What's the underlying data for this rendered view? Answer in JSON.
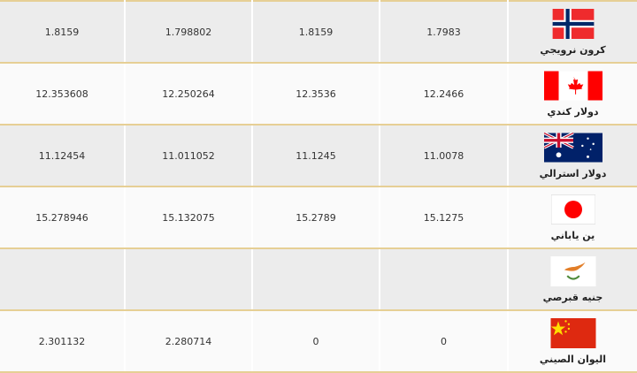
{
  "rows": [
    {
      "currency": "كرون نرويجي",
      "flag": "norway-flag",
      "c1": "1.8159",
      "c2": "1.798802",
      "c3": "1.8159",
      "c4": "1.7983"
    },
    {
      "currency": "دولار كندي",
      "flag": "canada-flag",
      "c1": "12.353608",
      "c2": "12.250264",
      "c3": "12.3536",
      "c4": "12.2466"
    },
    {
      "currency": "دولار استرالي",
      "flag": "australia-flag",
      "c1": "11.12454",
      "c2": "11.011052",
      "c3": "11.1245",
      "c4": "11.0078"
    },
    {
      "currency": "ين ياباني",
      "flag": "japan-flag",
      "c1": "15.278946",
      "c2": "15.132075",
      "c3": "15.2789",
      "c4": "15.1275"
    },
    {
      "currency": "جنيه قبرصي",
      "flag": "cyprus-flag",
      "c1": "",
      "c2": "",
      "c3": "",
      "c4": ""
    },
    {
      "currency": "اليوان الصيني",
      "flag": "china-flag",
      "c1": "2.301132",
      "c2": "2.280714",
      "c3": "0",
      "c4": "0"
    }
  ],
  "colors": {
    "border": "#e6cf95",
    "row_gray": "#ececec",
    "row_white": "#fafafa"
  }
}
